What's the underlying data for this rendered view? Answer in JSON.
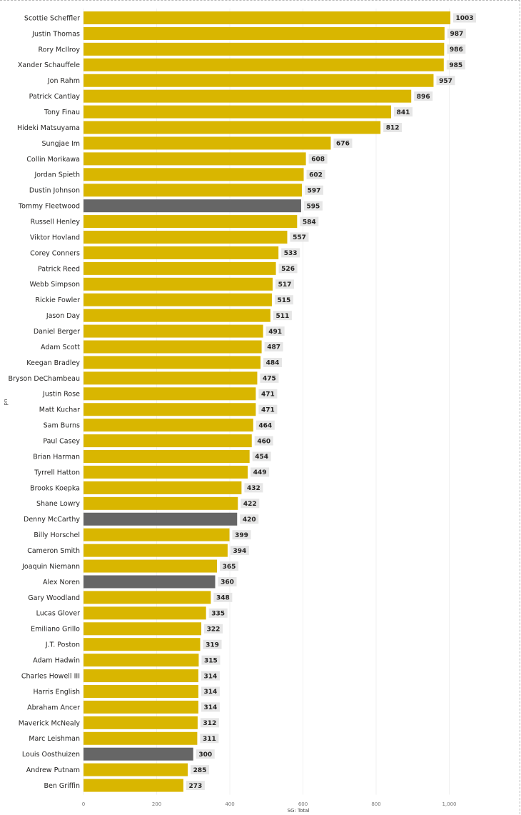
{
  "chart_data": {
    "type": "bar",
    "orientation": "horizontal",
    "xlabel": "SG: Total",
    "ylabel": "pn",
    "xlim": [
      0,
      1000
    ],
    "x_ticks": [
      "0",
      "200",
      "400",
      "600",
      "800",
      "1,000"
    ],
    "x_tick_values": [
      0,
      200,
      400,
      600,
      800,
      1000
    ],
    "grid": true,
    "colors": {
      "default": "#D9B600",
      "highlight": "#666666",
      "label_bg": "#E6E6E6"
    },
    "categories": [
      "Scottie Scheffler",
      "Justin Thomas",
      "Rory McIlroy",
      "Xander Schauffele",
      "Jon Rahm",
      "Patrick Cantlay",
      "Tony Finau",
      "Hideki Matsuyama",
      "Sungjae Im",
      "Collin Morikawa",
      "Jordan Spieth",
      "Dustin Johnson",
      "Tommy Fleetwood",
      "Russell Henley",
      "Viktor Hovland",
      "Corey Conners",
      "Patrick Reed",
      "Webb Simpson",
      "Rickie Fowler",
      "Jason Day",
      "Daniel Berger",
      "Adam Scott",
      "Keegan Bradley",
      "Bryson DeChambeau",
      "Justin Rose",
      "Matt Kuchar",
      "Sam Burns",
      "Paul Casey",
      "Brian Harman",
      "Tyrrell Hatton",
      "Brooks Koepka",
      "Shane Lowry",
      "Denny McCarthy",
      "Billy Horschel",
      "Cameron Smith",
      "Joaquin Niemann",
      "Alex Noren",
      "Gary Woodland",
      "Lucas Glover",
      "Emiliano Grillo",
      "J.T. Poston",
      "Adam Hadwin",
      "Charles Howell III",
      "Harris English",
      "Abraham Ancer",
      "Maverick McNealy",
      "Marc Leishman",
      "Louis Oosthuizen",
      "Andrew Putnam",
      "Ben Griffin"
    ],
    "values": [
      1003,
      987,
      986,
      985,
      957,
      896,
      841,
      812,
      676,
      608,
      602,
      597,
      595,
      584,
      557,
      533,
      526,
      517,
      515,
      511,
      491,
      487,
      484,
      475,
      471,
      471,
      464,
      460,
      454,
      449,
      432,
      422,
      420,
      399,
      394,
      365,
      360,
      348,
      335,
      322,
      319,
      315,
      314,
      314,
      314,
      312,
      311,
      300,
      285,
      273
    ],
    "highlighted": [
      "Tommy Fleetwood",
      "Denny McCarthy",
      "Alex Noren",
      "Louis Oosthuizen"
    ]
  }
}
